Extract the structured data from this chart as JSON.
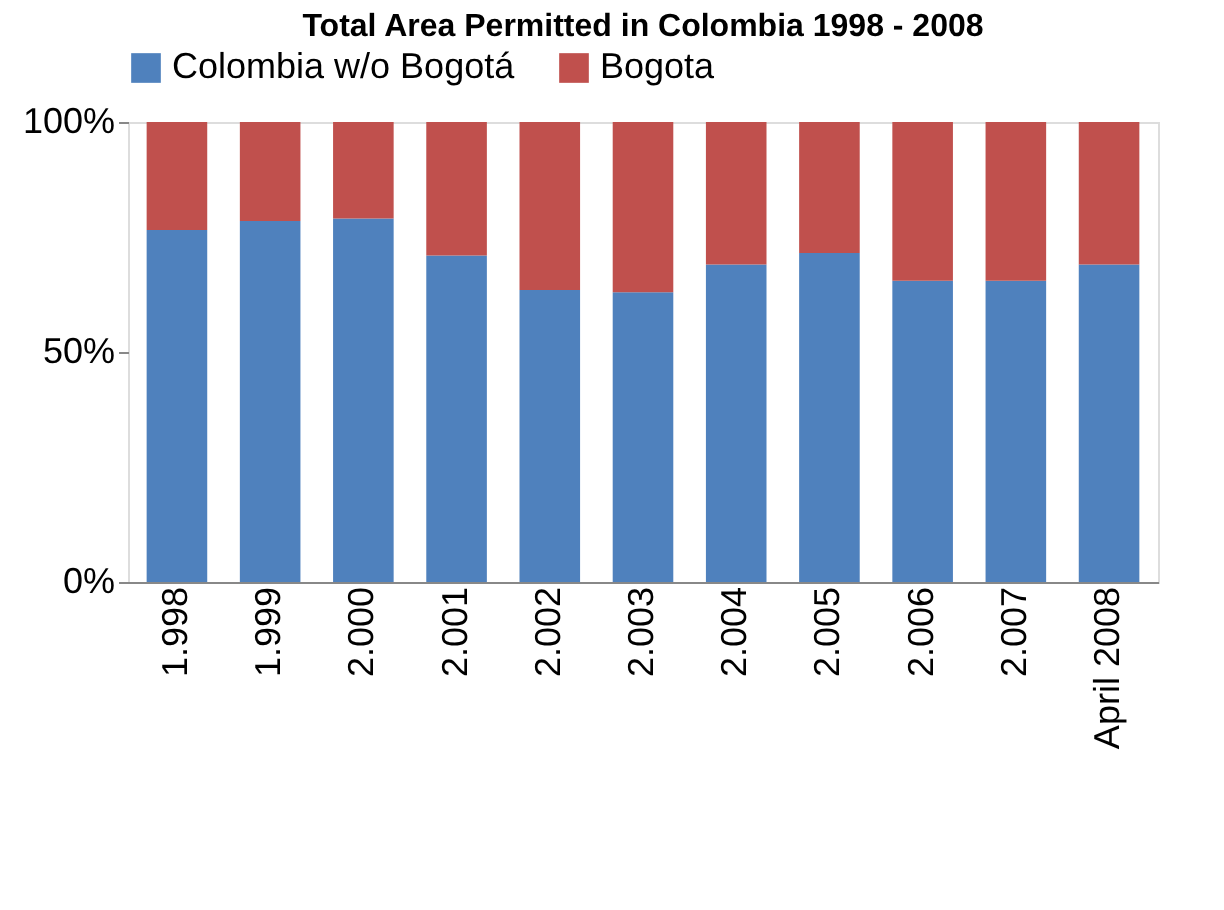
{
  "chart_data": {
    "type": "bar",
    "title": "Total Area Permitted in Colombia 1998 - 2008",
    "stacked": true,
    "legend": "top",
    "grid": false,
    "categories": [
      "1.998",
      "1.999",
      "2.000",
      "2.001",
      "2.002",
      "2.003",
      "2.004",
      "2.005",
      "2.006",
      "2.007",
      "April 2008"
    ],
    "series": [
      {
        "name": "Colombia w/o Bogotá",
        "color": "#4f81bd",
        "values": [
          76.5,
          78.5,
          79,
          71,
          63.5,
          63,
          69,
          71.5,
          65.5,
          65.5,
          69
        ]
      },
      {
        "name": "Bogota",
        "color": "#c0504d",
        "values": [
          23.5,
          21.5,
          21,
          29,
          36.5,
          37,
          31,
          28.5,
          34.5,
          34.5,
          31
        ]
      }
    ],
    "ylim": [
      0,
      100
    ],
    "yticks": [
      {
        "value": 0,
        "label": "0%"
      },
      {
        "value": 50,
        "label": "50%"
      },
      {
        "value": 100,
        "label": "100%"
      }
    ]
  }
}
